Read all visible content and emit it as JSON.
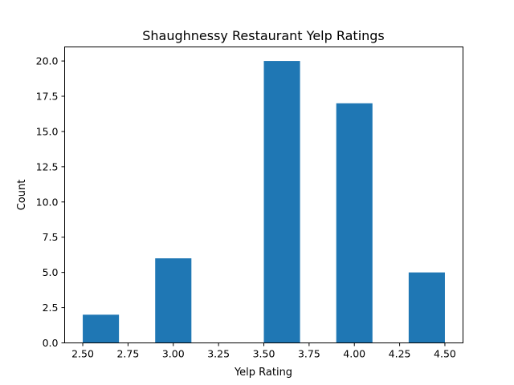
{
  "chart_data": {
    "type": "bar",
    "title": "Shaughnessy Restaurant Yelp Ratings",
    "xlabel": "Yelp Rating",
    "ylabel": "Count",
    "xlim": [
      2.4,
      4.6
    ],
    "ylim": [
      0,
      21
    ],
    "grid": false,
    "legend": "none",
    "bar_color": "#1f77b4",
    "bin_width": 0.2,
    "bars": [
      {
        "x_start": 2.5,
        "x_end": 2.7,
        "value": 2
      },
      {
        "x_start": 2.7,
        "x_end": 2.9,
        "value": 0
      },
      {
        "x_start": 2.9,
        "x_end": 3.1,
        "value": 6
      },
      {
        "x_start": 3.1,
        "x_end": 3.3,
        "value": 0
      },
      {
        "x_start": 3.3,
        "x_end": 3.5,
        "value": 0
      },
      {
        "x_start": 3.5,
        "x_end": 3.7,
        "value": 20
      },
      {
        "x_start": 3.7,
        "x_end": 3.9,
        "value": 0
      },
      {
        "x_start": 3.9,
        "x_end": 4.1,
        "value": 17
      },
      {
        "x_start": 4.1,
        "x_end": 4.3,
        "value": 0
      },
      {
        "x_start": 4.3,
        "x_end": 4.5,
        "value": 5
      }
    ],
    "x_ticks": [
      2.5,
      2.75,
      3.0,
      3.25,
      3.5,
      3.75,
      4.0,
      4.25,
      4.5
    ],
    "x_tick_labels": [
      "2.50",
      "2.75",
      "3.00",
      "3.25",
      "3.50",
      "3.75",
      "4.00",
      "4.25",
      "4.50"
    ],
    "y_ticks": [
      0,
      2.5,
      5,
      7.5,
      10,
      12.5,
      15,
      17.5,
      20
    ],
    "y_tick_labels": [
      "0.0",
      "2.5",
      "5.0",
      "7.5",
      "10.0",
      "12.5",
      "15.0",
      "17.5",
      "20.0"
    ]
  }
}
